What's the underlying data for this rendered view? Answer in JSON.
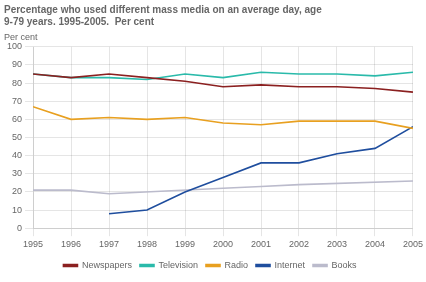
{
  "chart_data": {
    "type": "line",
    "title": "Percentage who used different mass media on an average day, age\n9-79 years. 1995-2005.  Per cent",
    "ylabel": "Per cent",
    "x": [
      1995,
      1996,
      1997,
      1998,
      1999,
      2000,
      2001,
      2002,
      2003,
      2004,
      2005
    ],
    "series": [
      {
        "name": "Newspapers",
        "color": "#8B2020",
        "values": [
          85,
          83,
          85,
          83,
          81,
          78,
          79,
          78,
          78,
          77,
          75
        ]
      },
      {
        "name": "Television",
        "color": "#2ABAAA",
        "values": [
          85,
          83,
          83,
          82,
          85,
          83,
          86,
          85,
          85,
          84,
          86
        ]
      },
      {
        "name": "Radio",
        "color": "#E8A020",
        "values": [
          67,
          60,
          61,
          60,
          61,
          58,
          57,
          59,
          59,
          59,
          55
        ]
      },
      {
        "name": "Internet",
        "color": "#1F4E9E",
        "values": [
          null,
          null,
          8,
          10,
          20,
          28,
          36,
          36,
          41,
          44,
          56
        ]
      },
      {
        "name": "Books",
        "color": "#BBBBCC",
        "values": [
          21,
          21,
          19,
          null,
          null,
          22,
          23,
          24,
          null,
          null,
          26
        ]
      }
    ],
    "xlim": [
      1995,
      2005
    ],
    "xticks": [
      1995,
      1996,
      1997,
      1998,
      1999,
      2000,
      2001,
      2002,
      2003,
      2004,
      2005
    ],
    "ylim": [
      0,
      100
    ],
    "yticks": [
      0,
      10,
      20,
      30,
      40,
      50,
      60,
      70,
      80,
      90,
      100
    ],
    "grid": true,
    "legend": "bottom"
  }
}
